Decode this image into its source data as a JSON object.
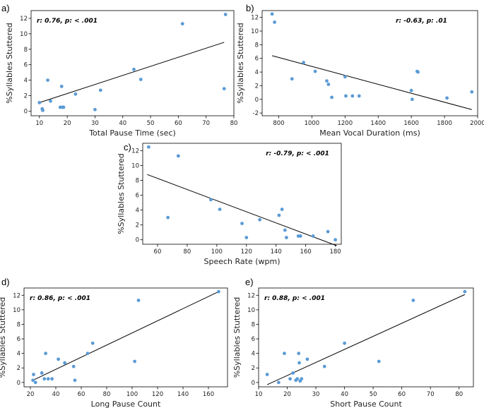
{
  "figure": {
    "background": "#ffffff",
    "point_color": "#5b9bd5",
    "line_color": "#000000"
  },
  "chart_data": [
    {
      "id": "a",
      "panel_label": "a)",
      "type": "scatter",
      "title": "",
      "xlabel": "Total Pause Time (sec)",
      "ylabel": "%Syllables Stuttered",
      "annotation": "r: 0.76, p: < .001",
      "xlim": [
        7,
        80
      ],
      "ylim": [
        -0.6,
        13
      ],
      "xticks": [
        10,
        20,
        30,
        40,
        50,
        60,
        70,
        80
      ],
      "yticks": [
        0,
        2,
        4,
        6,
        8,
        10,
        12
      ],
      "points": [
        [
          10,
          1.1
        ],
        [
          11,
          0.3
        ],
        [
          11.2,
          0.1
        ],
        [
          13,
          4.0
        ],
        [
          14,
          1.3
        ],
        [
          17.5,
          0.5
        ],
        [
          18,
          3.2
        ],
        [
          18.3,
          0.5
        ],
        [
          18.7,
          0.5
        ],
        [
          23,
          2.2
        ],
        [
          30,
          0.2
        ],
        [
          32,
          2.7
        ],
        [
          44,
          5.4
        ],
        [
          46.5,
          4.1
        ],
        [
          61.5,
          11.3
        ],
        [
          76.5,
          2.9
        ],
        [
          77,
          12.5
        ]
      ],
      "fit_line": [
        [
          10,
          1.1
        ],
        [
          76.5,
          8.9
        ]
      ]
    },
    {
      "id": "b",
      "panel_label": "b)",
      "type": "scatter",
      "title": "",
      "xlabel": "Mean Vocal Duration (ms)",
      "ylabel": "%Syllables Stuttered",
      "annotation": "r: -0.63, p: .01",
      "xlim": [
        700,
        2000
      ],
      "ylim": [
        -2.4,
        13
      ],
      "xticks": [
        800,
        1000,
        1200,
        1400,
        1600,
        1800,
        2000
      ],
      "yticks": [
        -2,
        0,
        2,
        4,
        6,
        8,
        10,
        12
      ],
      "points": [
        [
          760,
          12.5
        ],
        [
          775,
          11.3
        ],
        [
          880,
          3.0
        ],
        [
          950,
          5.4
        ],
        [
          1020,
          4.1
        ],
        [
          1090,
          2.7
        ],
        [
          1100,
          2.2
        ],
        [
          1120,
          0.3
        ],
        [
          1200,
          3.3
        ],
        [
          1205,
          0.5
        ],
        [
          1245,
          0.5
        ],
        [
          1285,
          0.5
        ],
        [
          1600,
          1.3
        ],
        [
          1605,
          0.0
        ],
        [
          1635,
          4.1
        ],
        [
          1640,
          4.0
        ],
        [
          1815,
          0.2
        ],
        [
          1965,
          1.1
        ]
      ],
      "fit_line": [
        [
          760,
          6.4
        ],
        [
          1965,
          -1.5
        ]
      ]
    },
    {
      "id": "c",
      "panel_label": "c)",
      "type": "scatter",
      "title": "",
      "xlabel": "Speech Rate (wpm)",
      "ylabel": "%Syllables Stuttered",
      "annotation": "r: -0.79, p: < .001",
      "xlim": [
        50,
        184
      ],
      "ylim": [
        -0.6,
        13
      ],
      "xticks": [
        60,
        80,
        100,
        120,
        140,
        160,
        180
      ],
      "yticks": [
        0,
        2,
        4,
        6,
        8,
        10,
        12
      ],
      "points": [
        [
          54,
          12.5
        ],
        [
          67,
          3.0
        ],
        [
          74,
          11.3
        ],
        [
          96,
          5.4
        ],
        [
          102,
          4.1
        ],
        [
          117,
          2.2
        ],
        [
          120,
          0.3
        ],
        [
          129,
          2.7
        ],
        [
          142,
          3.3
        ],
        [
          144,
          4.1
        ],
        [
          146,
          1.3
        ],
        [
          147,
          0.3
        ],
        [
          155,
          0.5
        ],
        [
          156.5,
          0.5
        ],
        [
          165,
          0.5
        ],
        [
          175,
          1.1
        ],
        [
          180,
          0.0
        ]
      ],
      "fit_line": [
        [
          53,
          8.8
        ],
        [
          181,
          -0.8
        ]
      ]
    },
    {
      "id": "d",
      "panel_label": "d)",
      "type": "scatter",
      "title": "",
      "xlabel": "Long Pause Count",
      "ylabel": "%Syllables Stuttered",
      "annotation": "r: 0.86, p: < .001",
      "xlim": [
        15,
        175
      ],
      "ylim": [
        -0.6,
        13
      ],
      "xticks": [
        20,
        40,
        60,
        80,
        100,
        120,
        140,
        160
      ],
      "yticks": [
        0,
        2,
        4,
        6,
        8,
        10,
        12
      ],
      "points": [
        [
          22,
          0.3
        ],
        [
          22.5,
          1.1
        ],
        [
          24,
          0.0
        ],
        [
          29,
          1.3
        ],
        [
          31,
          0.5
        ],
        [
          32,
          4.0
        ],
        [
          34,
          0.5
        ],
        [
          37,
          0.5
        ],
        [
          42,
          3.2
        ],
        [
          47,
          2.7
        ],
        [
          54,
          2.2
        ],
        [
          55,
          0.3
        ],
        [
          65,
          4.0
        ],
        [
          69,
          5.4
        ],
        [
          102,
          2.9
        ],
        [
          105,
          11.3
        ],
        [
          168,
          12.5
        ]
      ],
      "fit_line": [
        [
          22,
          0.3
        ],
        [
          168,
          12.5
        ]
      ]
    },
    {
      "id": "e",
      "panel_label": "e)",
      "type": "scatter",
      "title": "",
      "xlabel": "Short Pause Count",
      "ylabel": "%Syllables Stuttered",
      "annotation": "r: 0.88, p: < .001",
      "xlim": [
        10,
        85
      ],
      "ylim": [
        -0.6,
        13
      ],
      "xticks": [
        10,
        20,
        30,
        40,
        50,
        60,
        70,
        80
      ],
      "yticks": [
        0,
        2,
        4,
        6,
        8,
        10,
        12
      ],
      "points": [
        [
          13,
          1.1
        ],
        [
          17,
          0.0
        ],
        [
          19,
          4.0
        ],
        [
          21,
          0.5
        ],
        [
          22,
          1.3
        ],
        [
          23,
          0.3
        ],
        [
          23.5,
          0.5
        ],
        [
          24,
          4.0
        ],
        [
          24.2,
          2.7
        ],
        [
          24.5,
          0.2
        ],
        [
          25,
          0.5
        ],
        [
          27,
          3.2
        ],
        [
          33,
          2.2
        ],
        [
          40,
          5.4
        ],
        [
          52,
          2.9
        ],
        [
          64,
          11.3
        ],
        [
          82,
          12.5
        ]
      ],
      "fit_line": [
        [
          13,
          -0.3
        ],
        [
          82,
          12.1
        ]
      ]
    }
  ]
}
